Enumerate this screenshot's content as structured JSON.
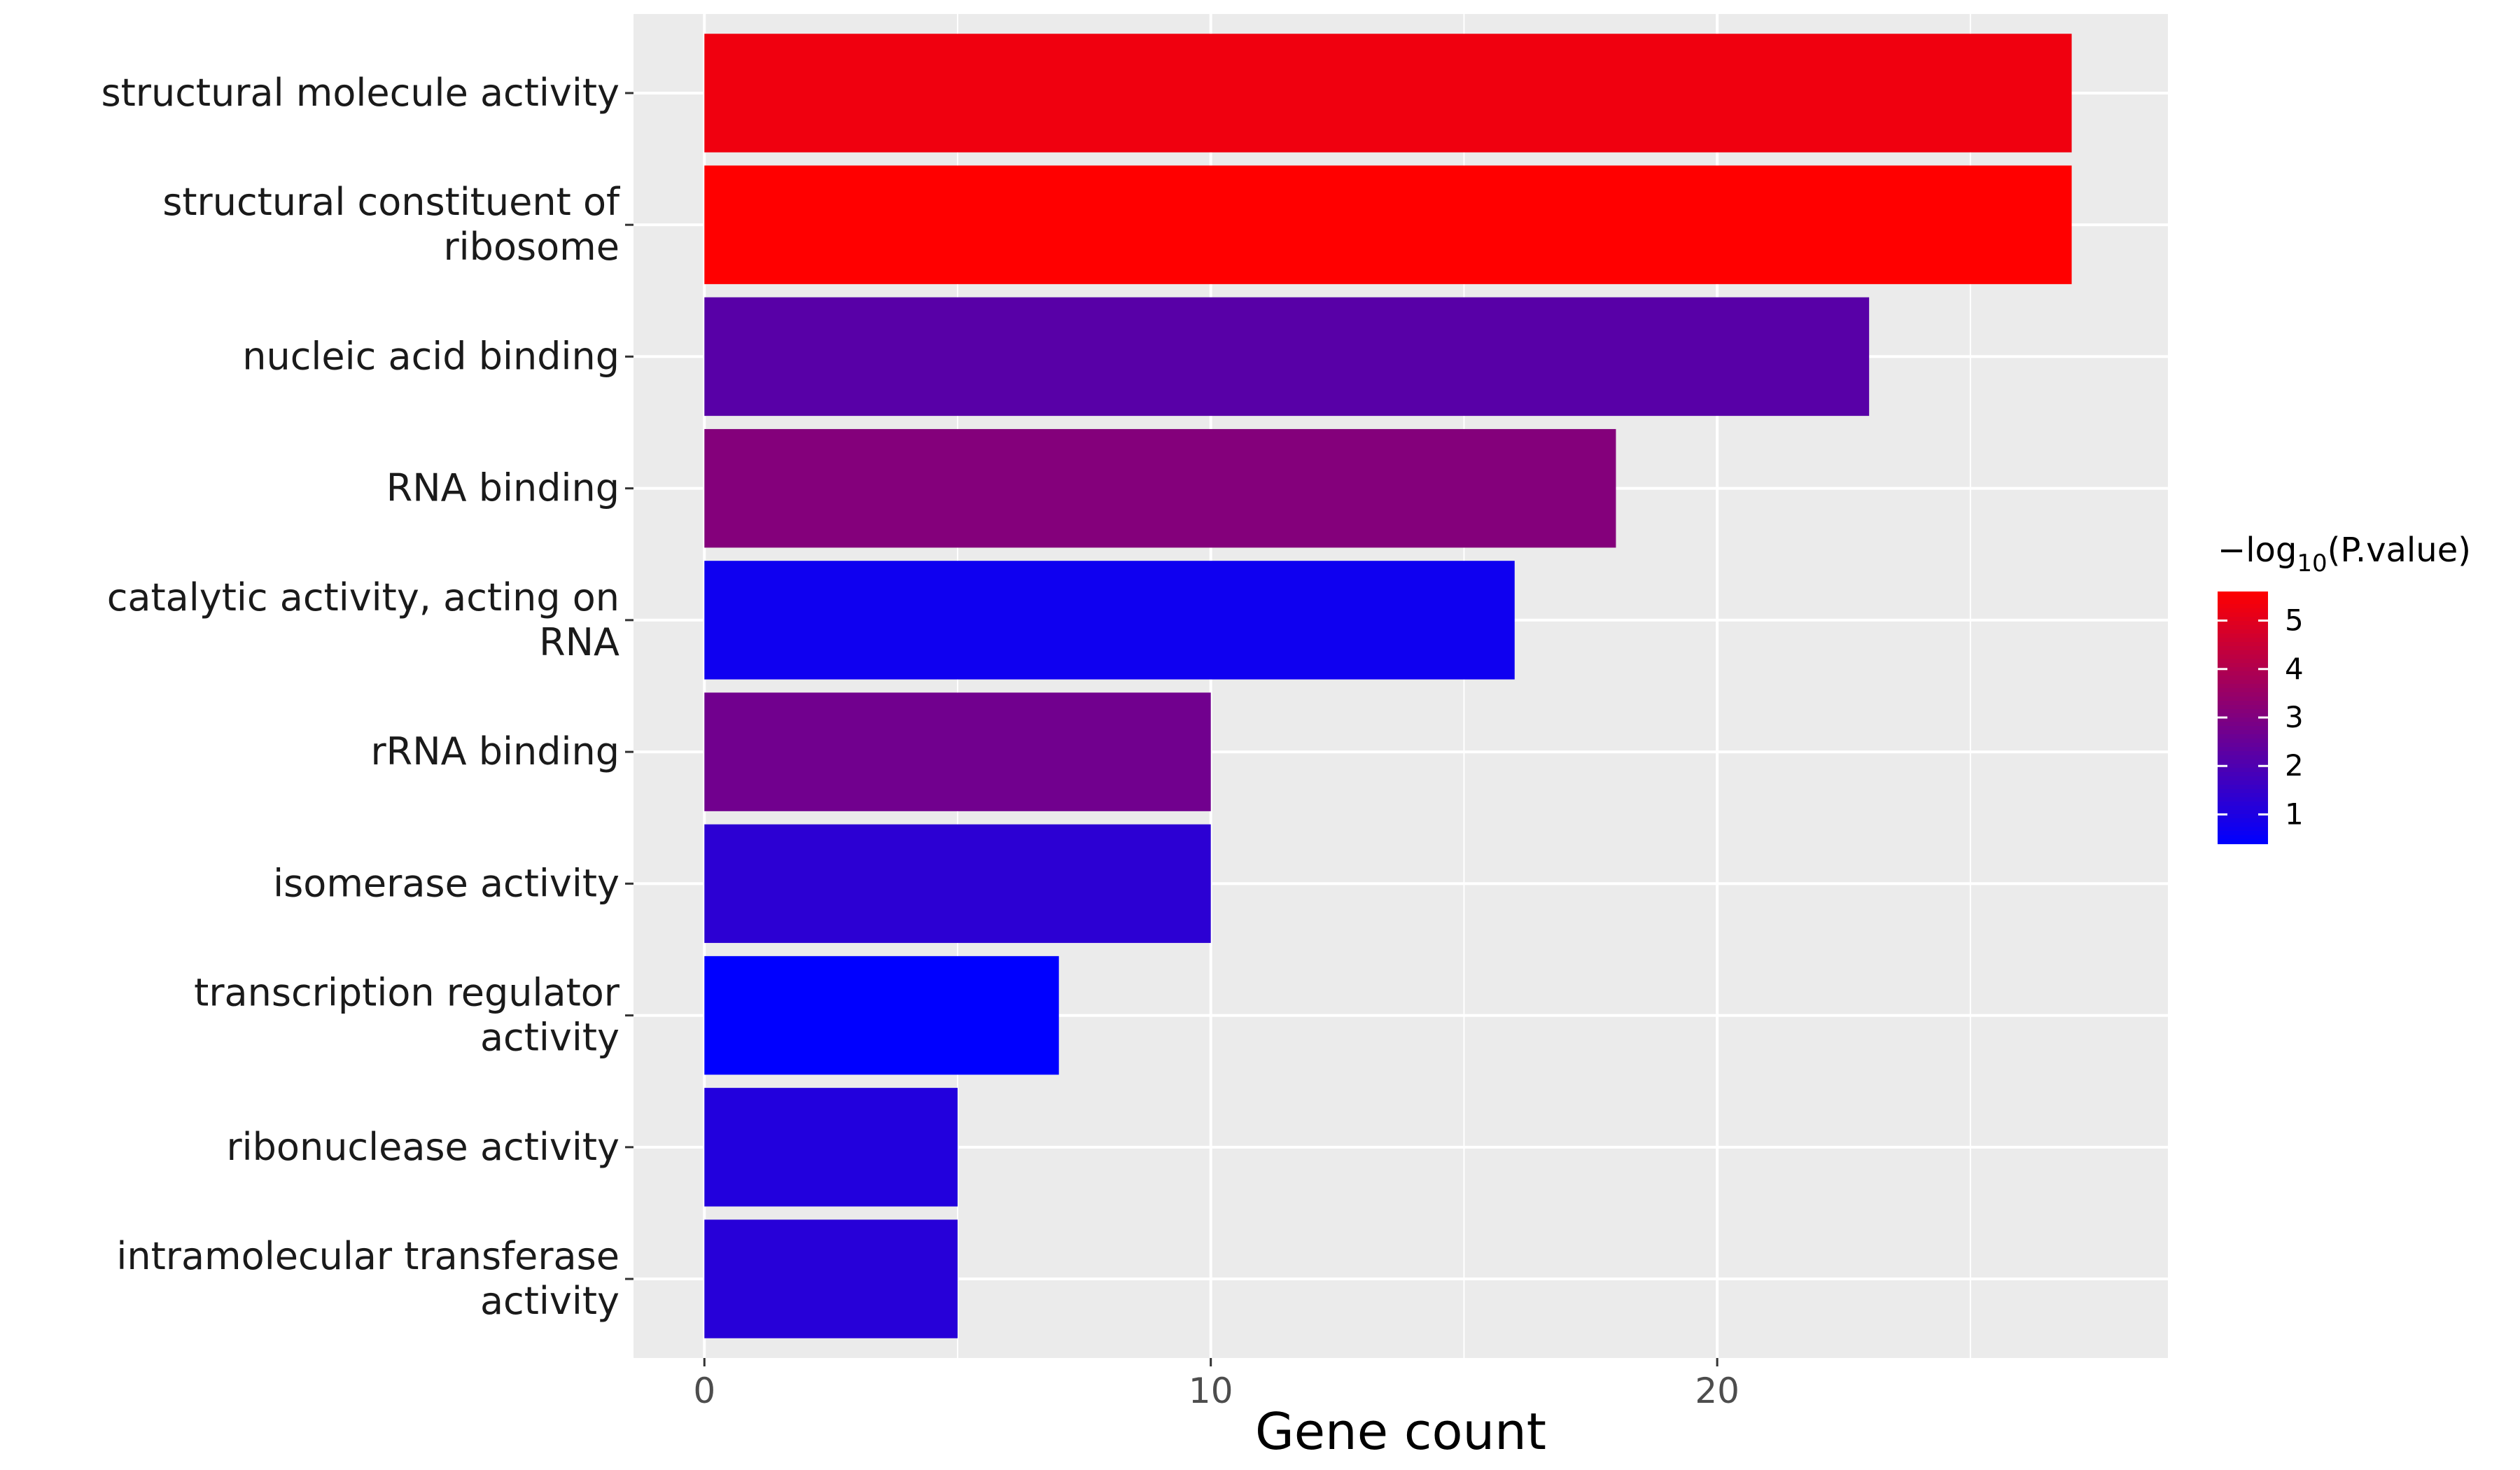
{
  "chart_data": {
    "type": "bar",
    "orientation": "horizontal",
    "categories": [
      "structural molecule activity",
      "structural constituent of ribosome",
      "nucleic acid binding",
      "RNA binding",
      "catalytic activity, acting on RNA",
      "rRNA binding",
      "isomerase activity",
      "transcription regulator activity",
      "ribonuclease activity",
      "intramolecular transferase activity"
    ],
    "category_lines": [
      [
        "structural molecule activity"
      ],
      [
        "structural constituent of",
        "ribosome"
      ],
      [
        "nucleic acid binding"
      ],
      [
        "RNA binding"
      ],
      [
        "catalytic activity, acting on",
        "RNA"
      ],
      [
        "rRNA binding"
      ],
      [
        "isomerase activity"
      ],
      [
        "transcription regulator",
        "activity"
      ],
      [
        "ribonuclease activity"
      ],
      [
        "intramolecular transferase",
        "activity"
      ]
    ],
    "values": [
      27,
      27,
      23,
      18,
      16,
      10,
      10,
      7,
      5,
      5
    ],
    "neg_log10_p": [
      5.3,
      5.6,
      2.2,
      3.1,
      0.7,
      2.7,
      1.3,
      0.4,
      1.1,
      1.2
    ],
    "xlabel": "Gene count",
    "ylabel": "",
    "xlim": [
      -1.4,
      28.9
    ],
    "x_ticks": [
      0,
      10,
      20
    ],
    "grid": true,
    "legend": {
      "title": "−log10(P.value)",
      "title_prefix": "−log",
      "title_sub": "10",
      "title_suffix": "(P.value)",
      "position": "right",
      "ticks": [
        1,
        2,
        3,
        4,
        5
      ],
      "range": [
        0.4,
        5.6
      ]
    },
    "colors": {
      "low": "#0000ff",
      "high": "#ff0000",
      "panel_bg": "#ebebeb",
      "grid": "#ffffff"
    }
  }
}
